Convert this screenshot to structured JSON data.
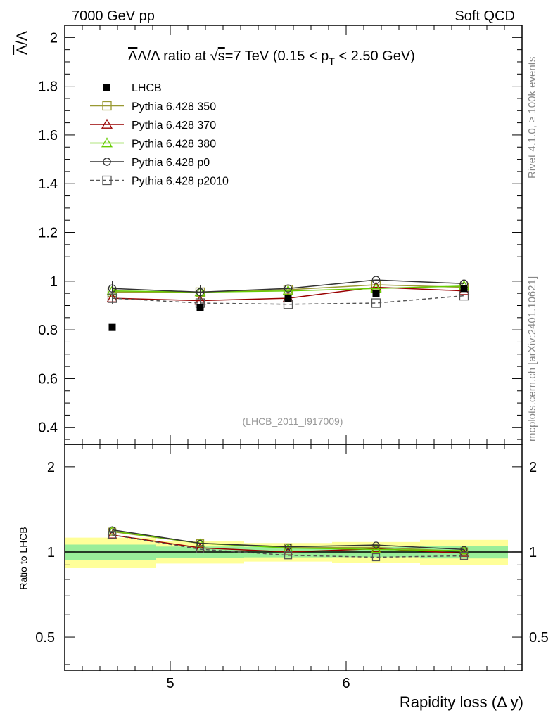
{
  "header": {
    "left": "7000 GeV pp",
    "right": "Soft QCD"
  },
  "side_labels": {
    "rivet": "Rivet 4.1.0, ≥ 100k events",
    "source": "mcplots.cern.ch [arXiv:2401.10621]"
  },
  "analysis_id": "(LHCB_2011_I917009)",
  "chart_data": {
    "type": "line",
    "title": "Λ̄/Λ ratio at √s=7 TeV (0.15 < p_T < 2.50 GeV)",
    "title_parts": {
      "ratio": "Λ/Λ ratio at ",
      "sqrt": "s",
      "energy": "=7 TeV (0.15 < p",
      "sub": "T",
      "tail": " < 2.50 GeV)"
    },
    "ylabel": "Λ/Λ",
    "ylabel_bar": "Λ",
    "ylabel_rest": "/Λ",
    "xlabel": "Rapidity loss (Δ y)",
    "ratio_ylabel": "Ratio to LHCB",
    "xlim": [
      4.4,
      7.0
    ],
    "ylim": [
      0.33,
      2.05
    ],
    "ratio_ylim": [
      0.38,
      2.4
    ],
    "x_ticks": [
      {
        "v": 5,
        "label": "5"
      },
      {
        "v": 6,
        "label": "6"
      }
    ],
    "y_ticks": [
      {
        "v": 0.4,
        "label": "0.4"
      },
      {
        "v": 0.6,
        "label": "0.6"
      },
      {
        "v": 0.8,
        "label": "0.8"
      },
      {
        "v": 1.0,
        "label": "1"
      },
      {
        "v": 1.2,
        "label": "1.2"
      },
      {
        "v": 1.4,
        "label": "1.4"
      },
      {
        "v": 1.6,
        "label": "1.6"
      },
      {
        "v": 1.8,
        "label": "1.8"
      },
      {
        "v": 2.0,
        "label": "2"
      }
    ],
    "ratio_y_ticks": [
      {
        "v": 0.5,
        "label": "0.5"
      },
      {
        "v": 1,
        "label": "1"
      },
      {
        "v": 2,
        "label": "2"
      }
    ],
    "bins": [
      [
        4.4,
        4.92
      ],
      [
        4.92,
        5.42
      ],
      [
        5.42,
        5.92
      ],
      [
        5.92,
        6.42
      ],
      [
        6.42,
        6.92
      ]
    ],
    "x": [
      4.67,
      5.17,
      5.67,
      6.17,
      6.67
    ],
    "data": {
      "name": "LHCB",
      "values": [
        0.81,
        0.89,
        0.93,
        0.95,
        0.97
      ],
      "band_inner": [
        0.05,
        0.04,
        0.04,
        0.04,
        0.05
      ],
      "band_outer": [
        0.1,
        0.08,
        0.07,
        0.08,
        0.1
      ]
    },
    "series": [
      {
        "name": "Pythia 6.428 350",
        "color": "#999933",
        "marker": "square",
        "dash": false,
        "values": [
          0.955,
          0.955,
          0.965,
          0.985,
          0.975
        ],
        "err": 0.025
      },
      {
        "name": "Pythia 6.428 370",
        "color": "#990000",
        "marker": "triangle",
        "dash": false,
        "values": [
          0.93,
          0.92,
          0.93,
          0.975,
          0.96
        ],
        "err": 0.02
      },
      {
        "name": "Pythia 6.428 380",
        "color": "#66cc00",
        "marker": "triangle",
        "dash": false,
        "values": [
          0.96,
          0.955,
          0.96,
          0.97,
          0.98
        ],
        "err": 0.025
      },
      {
        "name": "Pythia 6.428 p0",
        "color": "#333333",
        "marker": "circle",
        "dash": false,
        "values": [
          0.97,
          0.955,
          0.97,
          1.005,
          0.99
        ],
        "err": 0.03
      },
      {
        "name": "Pythia 6.428 p2010",
        "color": "#555555",
        "marker": "square",
        "dash": true,
        "values": [
          0.93,
          0.91,
          0.905,
          0.91,
          0.94
        ],
        "err": 0.025
      }
    ]
  }
}
